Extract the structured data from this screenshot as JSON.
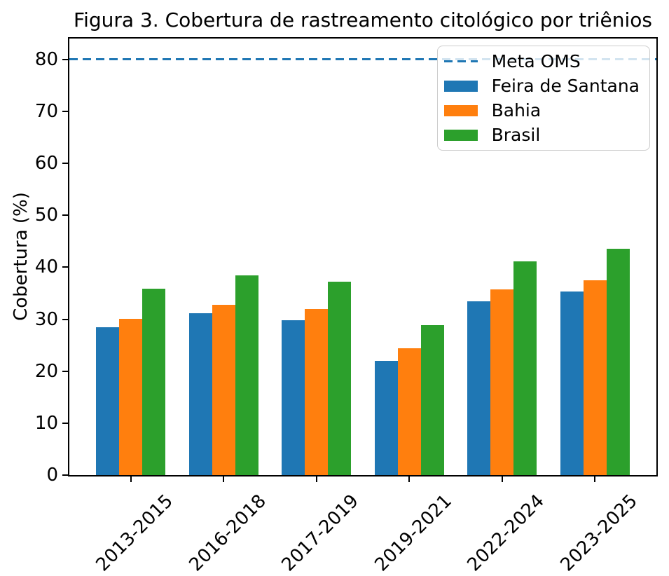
{
  "chart_data": {
    "type": "bar",
    "title": "Figura 3. Cobertura de rastreamento citológico por triênios",
    "ylabel": "Cobertura (%)",
    "xlabel": "",
    "categories": [
      "2013-2015",
      "2016-2018",
      "2017-2019",
      "2019-2021",
      "2022-2024",
      "2023-2025"
    ],
    "series": [
      {
        "name": "Feira de Santana",
        "color": "#1f77b4",
        "values": [
          28.4,
          31.2,
          29.8,
          22.0,
          33.4,
          35.3
        ]
      },
      {
        "name": "Bahia",
        "color": "#ff7f0e",
        "values": [
          30.1,
          32.8,
          31.9,
          24.4,
          35.7,
          37.5
        ]
      },
      {
        "name": "Brasil",
        "color": "#2ca02c",
        "values": [
          35.8,
          38.4,
          37.2,
          28.9,
          41.1,
          43.5
        ]
      }
    ],
    "reference_line": {
      "label": "Meta OMS",
      "value": 80,
      "color": "#1f77b4",
      "style": "dashed"
    },
    "ylim": [
      0,
      84
    ],
    "yticks": [
      0,
      10,
      20,
      30,
      40,
      50,
      60,
      70,
      80
    ],
    "legend_position": "upper right",
    "grid": false
  }
}
